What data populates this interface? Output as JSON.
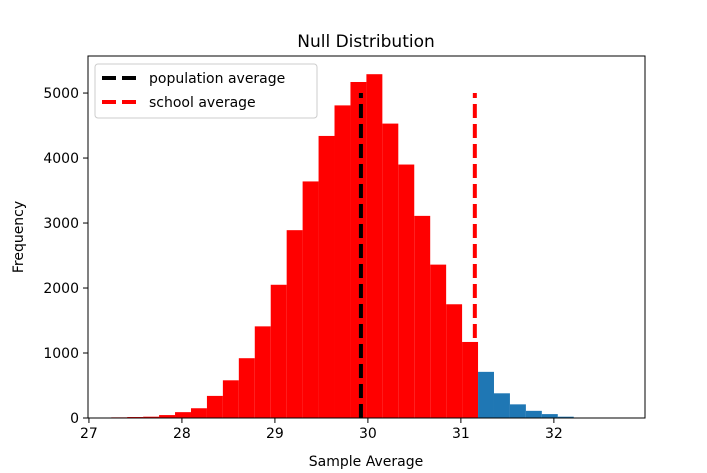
{
  "chart_data": {
    "type": "bar",
    "subtype": "histogram",
    "title": "Null Distribution",
    "xlabel": "Sample Average",
    "ylabel": "Frequency",
    "xlim": [
      26.99,
      32.98
    ],
    "ylim": [
      0,
      5570
    ],
    "grid": false,
    "x_ticks": [
      "27",
      "28",
      "29",
      "30",
      "31",
      "32"
    ],
    "x_tick_values": [
      27,
      28,
      29,
      30,
      31,
      32
    ],
    "y_ticks": [
      "0",
      "1000",
      "2000",
      "3000",
      "4000",
      "5000"
    ],
    "y_tick_values": [
      0,
      1000,
      2000,
      3000,
      4000,
      5000
    ],
    "bin_start": 27.24,
    "bin_width": 0.1715,
    "values": [
      10,
      15,
      20,
      45,
      90,
      150,
      340,
      580,
      920,
      1410,
      2050,
      2890,
      3640,
      4340,
      4810,
      5170,
      5290,
      4530,
      3900,
      3110,
      2360,
      1750,
      1170,
      710,
      380,
      210,
      110,
      60,
      20
    ],
    "bar_colors": [
      "#ff0000",
      "#ff0000",
      "#ff0000",
      "#ff0000",
      "#ff0000",
      "#ff0000",
      "#ff0000",
      "#ff0000",
      "#ff0000",
      "#ff0000",
      "#ff0000",
      "#ff0000",
      "#ff0000",
      "#ff0000",
      "#ff0000",
      "#ff0000",
      "#ff0000",
      "#ff0000",
      "#ff0000",
      "#ff0000",
      "#ff0000",
      "#ff0000",
      "#ff0000",
      "#1f77b4",
      "#1f77b4",
      "#1f77b4",
      "#1f77b4",
      "#1f77b4",
      "#1f77b4"
    ],
    "vlines": [
      {
        "name": "population average",
        "x": 29.925,
        "ymin": 0,
        "ymax": 5000,
        "color": "#000000",
        "style": "dashed"
      },
      {
        "name": "school average",
        "x": 31.15,
        "ymin": 0,
        "ymax": 5000,
        "color": "#ff0000",
        "style": "dashed"
      }
    ],
    "legend_position": "top-left"
  }
}
